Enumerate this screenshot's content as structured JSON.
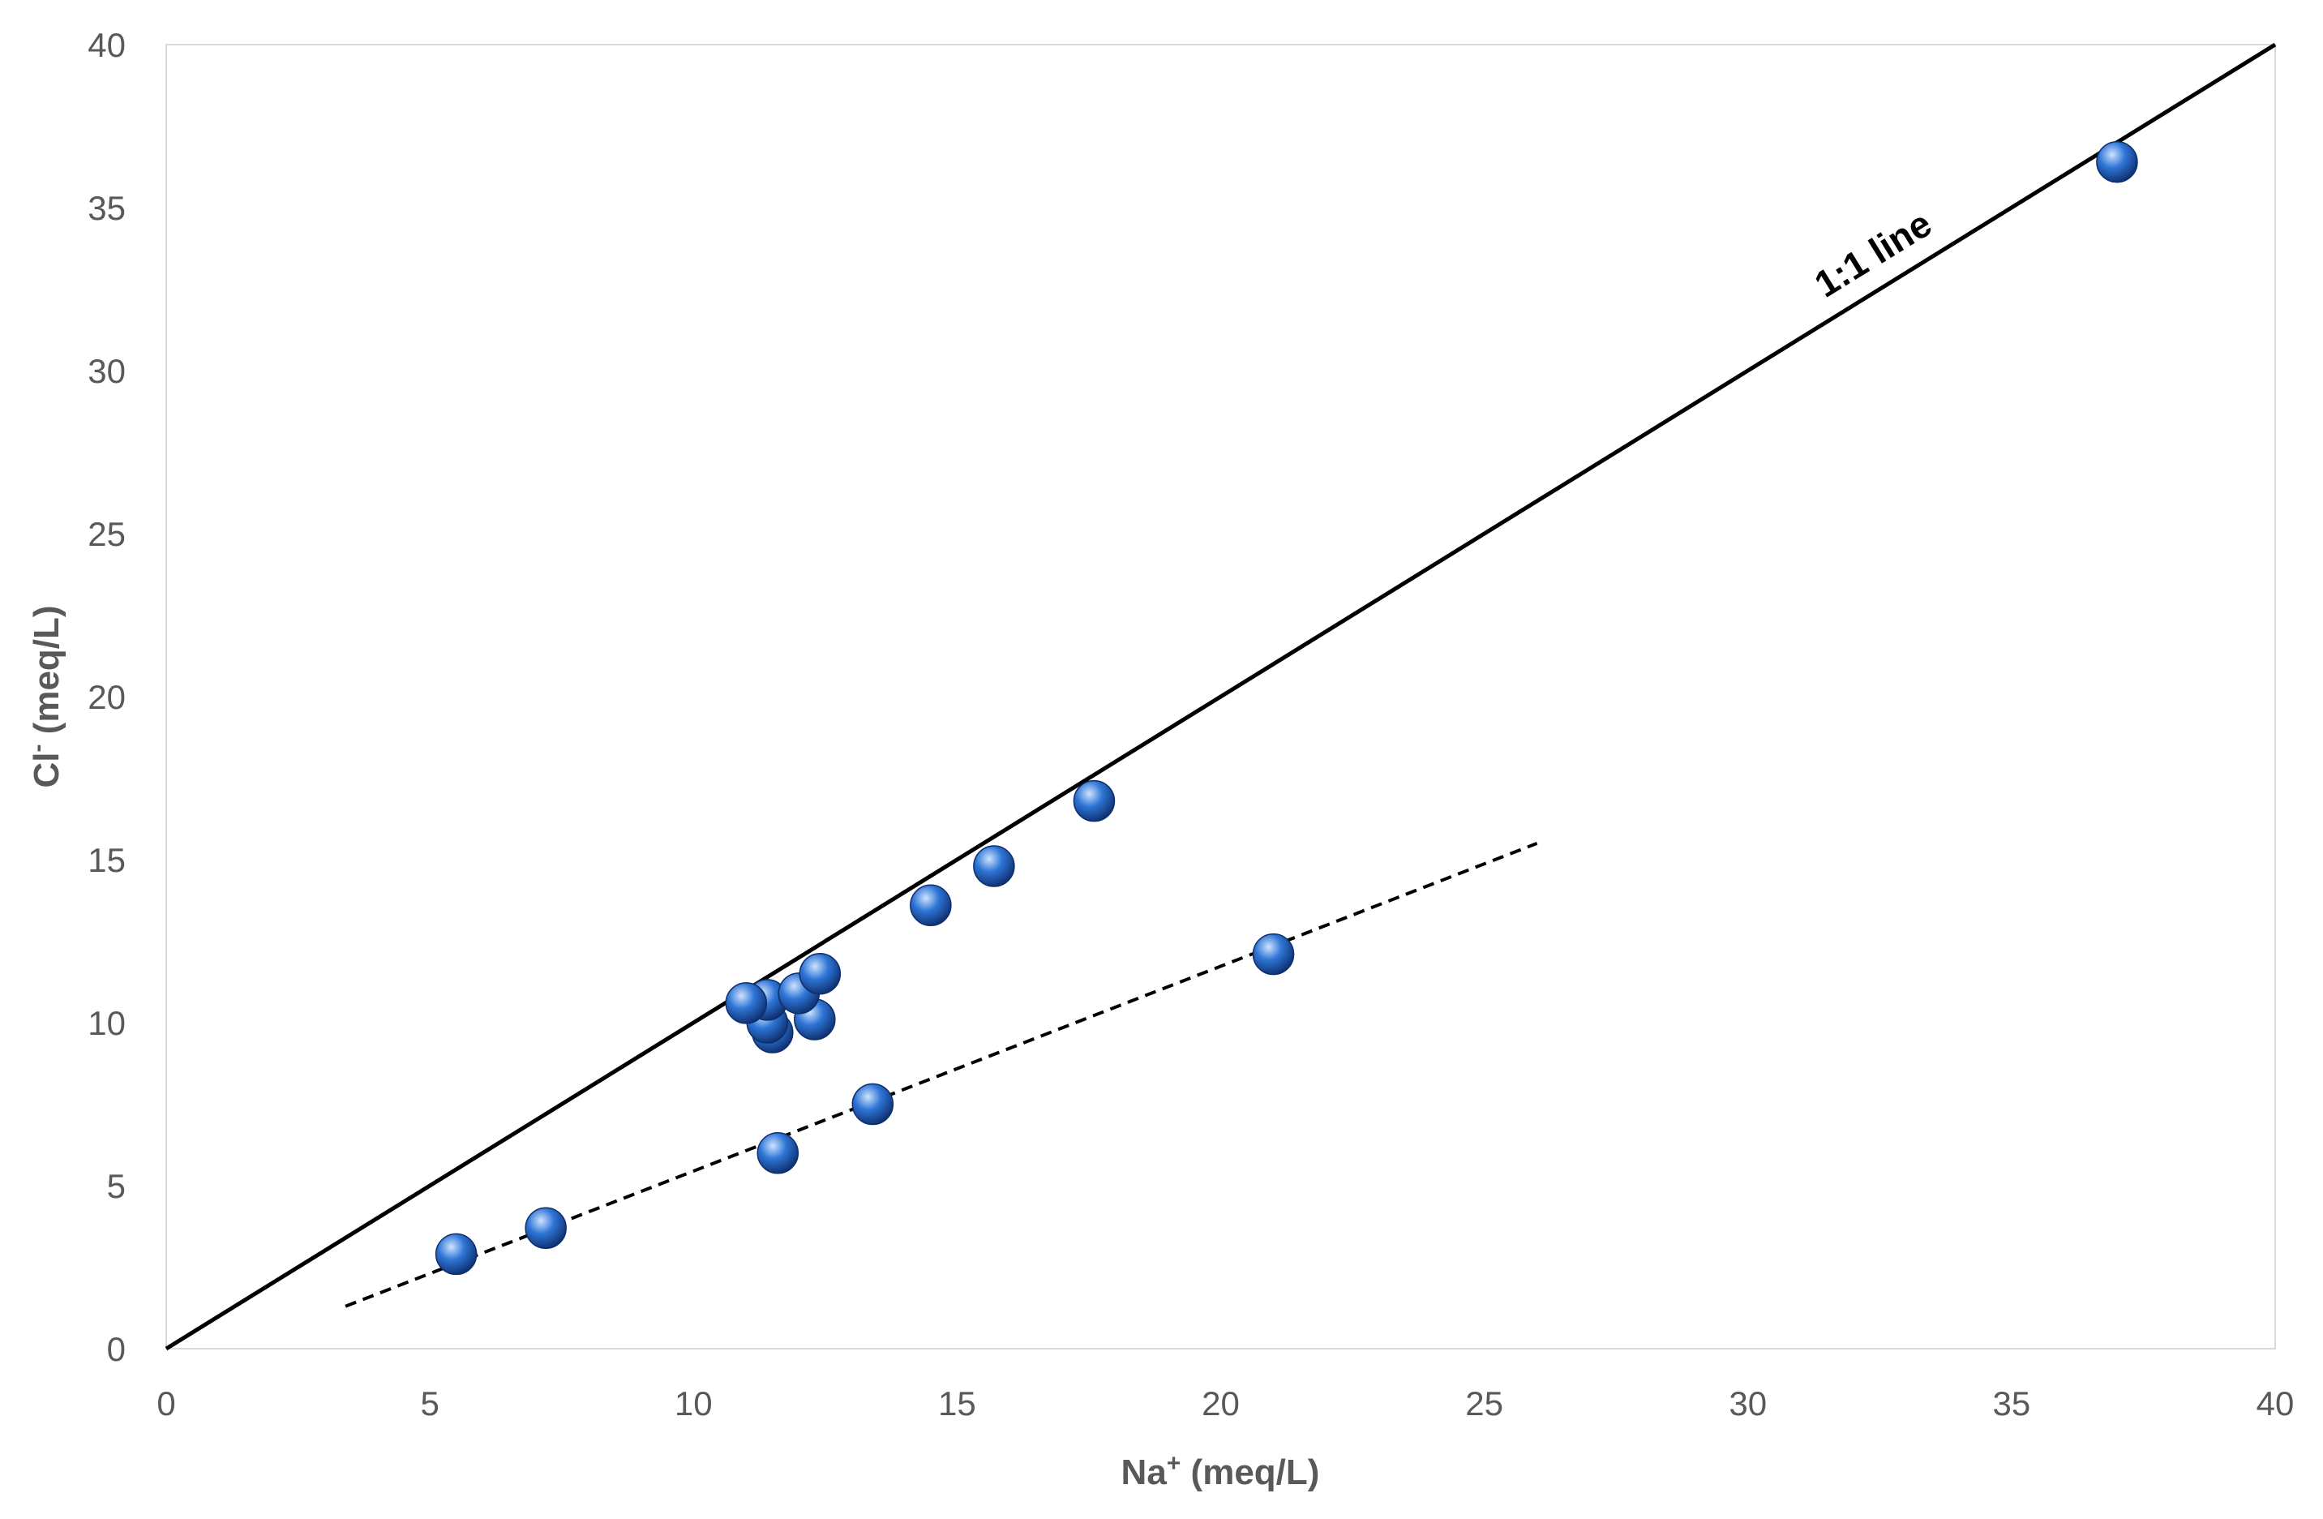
{
  "colors": {
    "background": "#ffffff",
    "plot_border": "#d9d9d9",
    "text": "#595959",
    "one_to_one_line": "#000000",
    "trend_line": "#000000",
    "marker_fill": "#2e75d6",
    "marker_dark": "#0d2d6b",
    "marker_highlight": "#cfe3ff"
  },
  "chart_data": {
    "type": "scatter",
    "title": "",
    "xlabel": {
      "main": "Na",
      "sup": "+",
      "unit": " (meq/L)"
    },
    "ylabel": {
      "main": "Cl",
      "sup": "-",
      "unit": " (meq/L)"
    },
    "xlim": [
      0,
      40
    ],
    "ylim": [
      0,
      40
    ],
    "x_ticks": [
      0,
      5,
      10,
      15,
      20,
      25,
      30,
      35,
      40
    ],
    "y_ticks": [
      0,
      5,
      10,
      15,
      20,
      25,
      30,
      35,
      40
    ],
    "grid": false,
    "legend": "none",
    "series": [
      {
        "marker": "sphere",
        "points": [
          {
            "x": 5.5,
            "y": 2.9
          },
          {
            "x": 7.2,
            "y": 3.7
          },
          {
            "x": 11.6,
            "y": 6.0
          },
          {
            "x": 13.4,
            "y": 7.5
          },
          {
            "x": 11.5,
            "y": 9.7
          },
          {
            "x": 11.4,
            "y": 10.0
          },
          {
            "x": 12.3,
            "y": 10.1
          },
          {
            "x": 11.4,
            "y": 10.7
          },
          {
            "x": 11.0,
            "y": 10.6
          },
          {
            "x": 12.0,
            "y": 10.9
          },
          {
            "x": 12.4,
            "y": 11.5
          },
          {
            "x": 14.5,
            "y": 13.6
          },
          {
            "x": 15.7,
            "y": 14.8
          },
          {
            "x": 17.6,
            "y": 16.8
          },
          {
            "x": 21.0,
            "y": 12.1
          },
          {
            "x": 37.0,
            "y": 36.4
          }
        ]
      }
    ],
    "reference_lines": [
      {
        "label": "1:1 line",
        "style": "solid",
        "from": {
          "x": 0,
          "y": 0
        },
        "to": {
          "x": 40,
          "y": 40
        }
      },
      {
        "label": "",
        "style": "dashed",
        "from": {
          "x": 3.4,
          "y": 1.3
        },
        "to": {
          "x": 26.0,
          "y": 15.5
        }
      }
    ]
  }
}
